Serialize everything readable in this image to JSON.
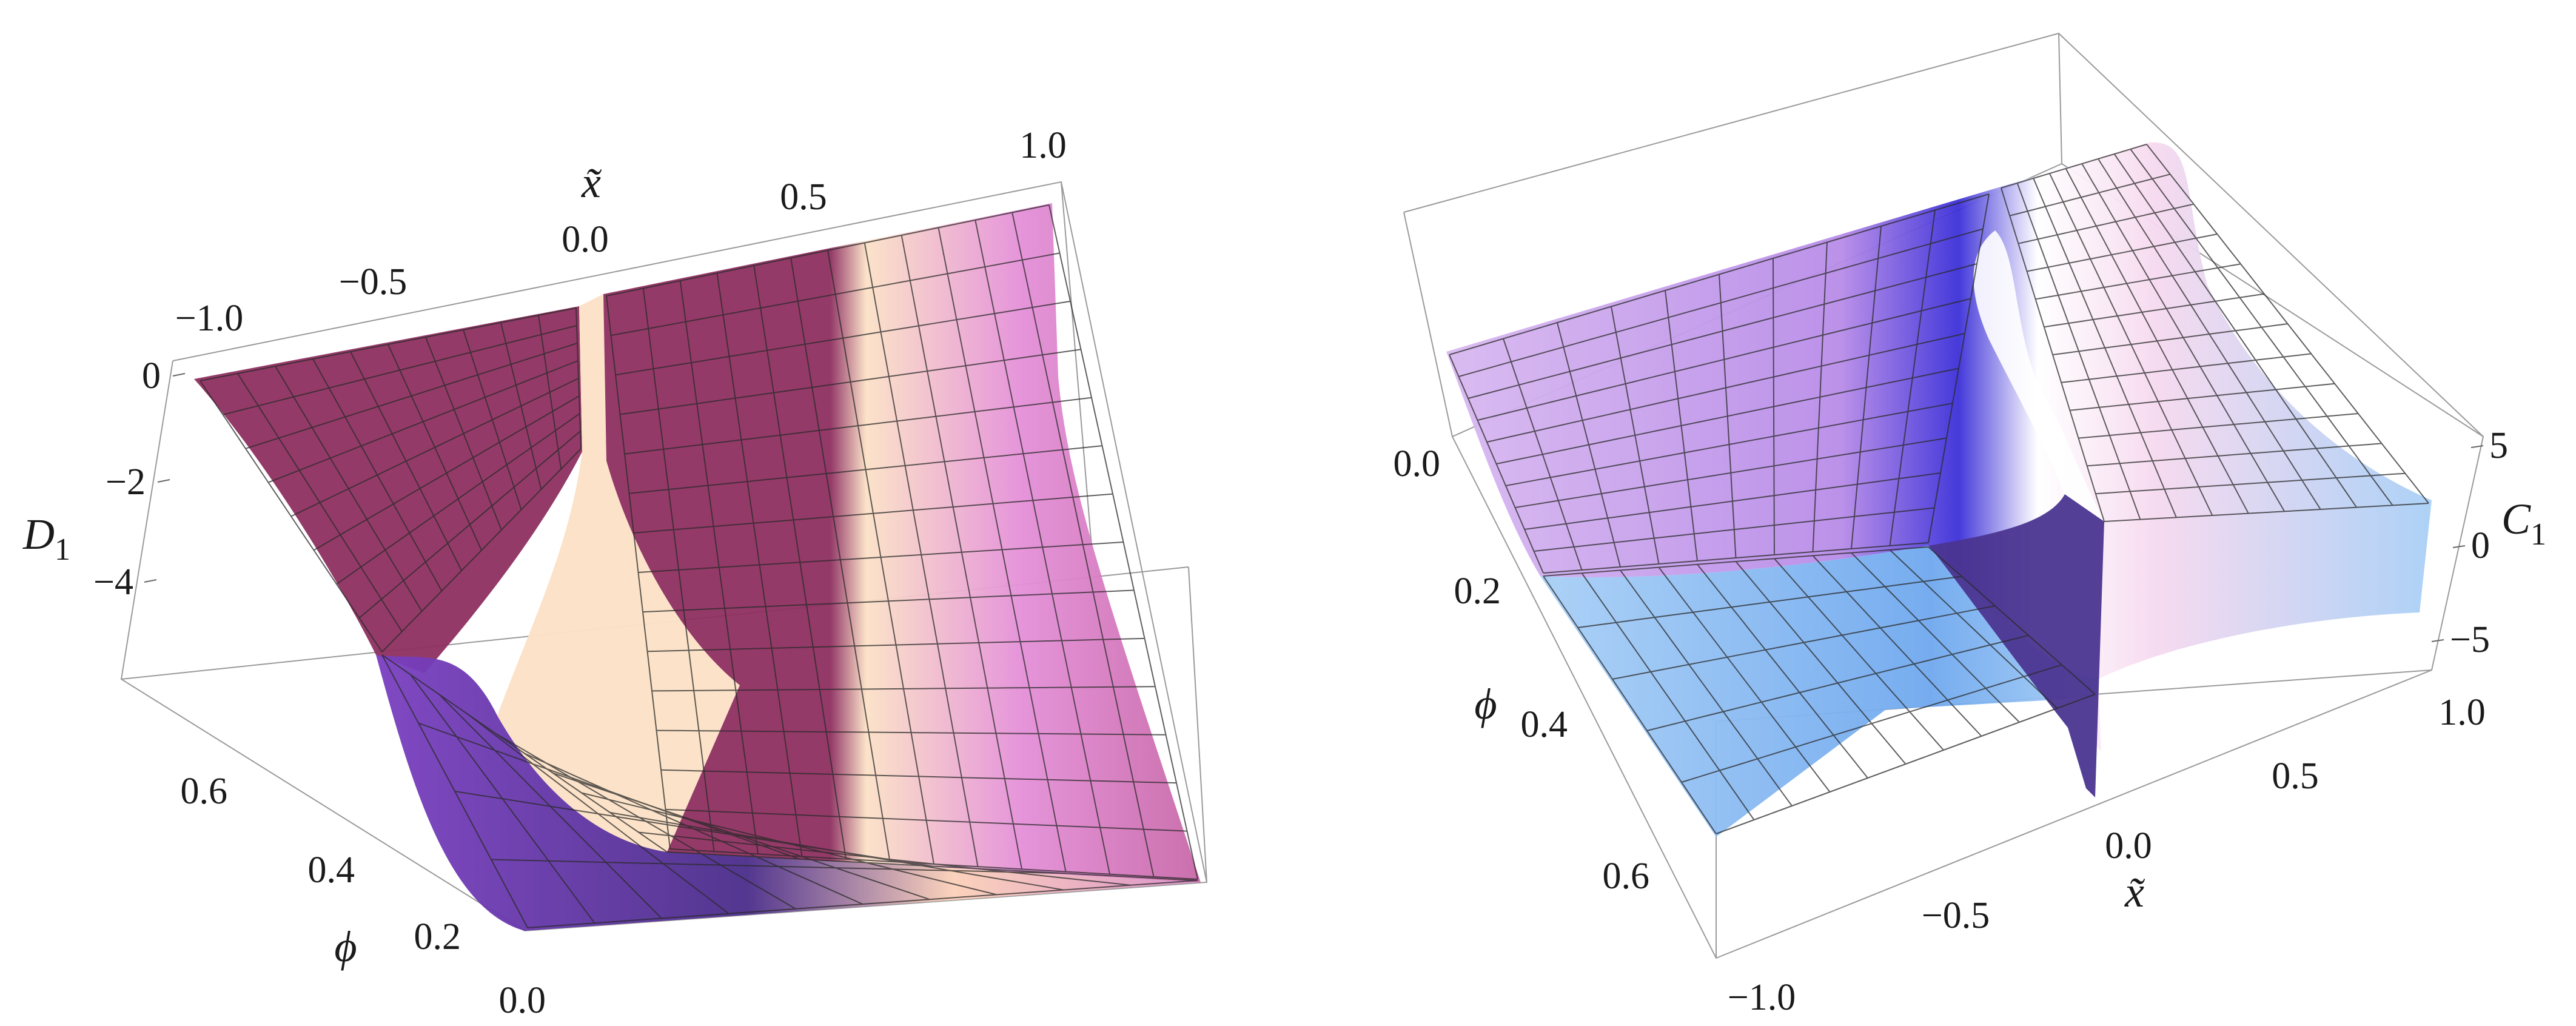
{
  "chart_data": [
    {
      "type": "surface3d",
      "xlabel": "x̃",
      "ylabel": "ϕ",
      "zlabel_base": "D",
      "zlabel_sub": "1",
      "x_ticks": [
        "−1.0",
        "−0.5",
        "0.0",
        "0.5",
        "1.0"
      ],
      "y_ticks": [
        "0.0",
        "0.2",
        "0.4",
        "0.6"
      ],
      "z_ticks": [
        "0",
        "−2",
        "−4"
      ],
      "xlim": [
        -1.0,
        1.0
      ],
      "ylim": [
        0.0,
        0.7
      ],
      "zlim": [
        -5.5,
        0.0
      ],
      "colors": {
        "low": "#7a3fc0",
        "mid": "#e48fd8",
        "high": "#fbe1c6",
        "base": "#8e2f60"
      }
    },
    {
      "type": "surface3d",
      "xlabel": "x̃",
      "ylabel": "ϕ",
      "zlabel_base": "C",
      "zlabel_sub": "1",
      "x_ticks": [
        "−1.0",
        "−0.5",
        "0.0",
        "0.5",
        "1.0"
      ],
      "y_ticks": [
        "0.0",
        "0.2",
        "0.4",
        "0.6"
      ],
      "z_ticks": [
        "5",
        "0",
        "−5"
      ],
      "xlim": [
        -1.0,
        1.0
      ],
      "ylim": [
        0.0,
        0.7
      ],
      "zlim": [
        -7.0,
        7.0
      ],
      "colors": {
        "low": "#3b2fd8",
        "mid": "#a8cff6",
        "high": "#f6d9ef",
        "base": "#4b3590"
      }
    }
  ]
}
